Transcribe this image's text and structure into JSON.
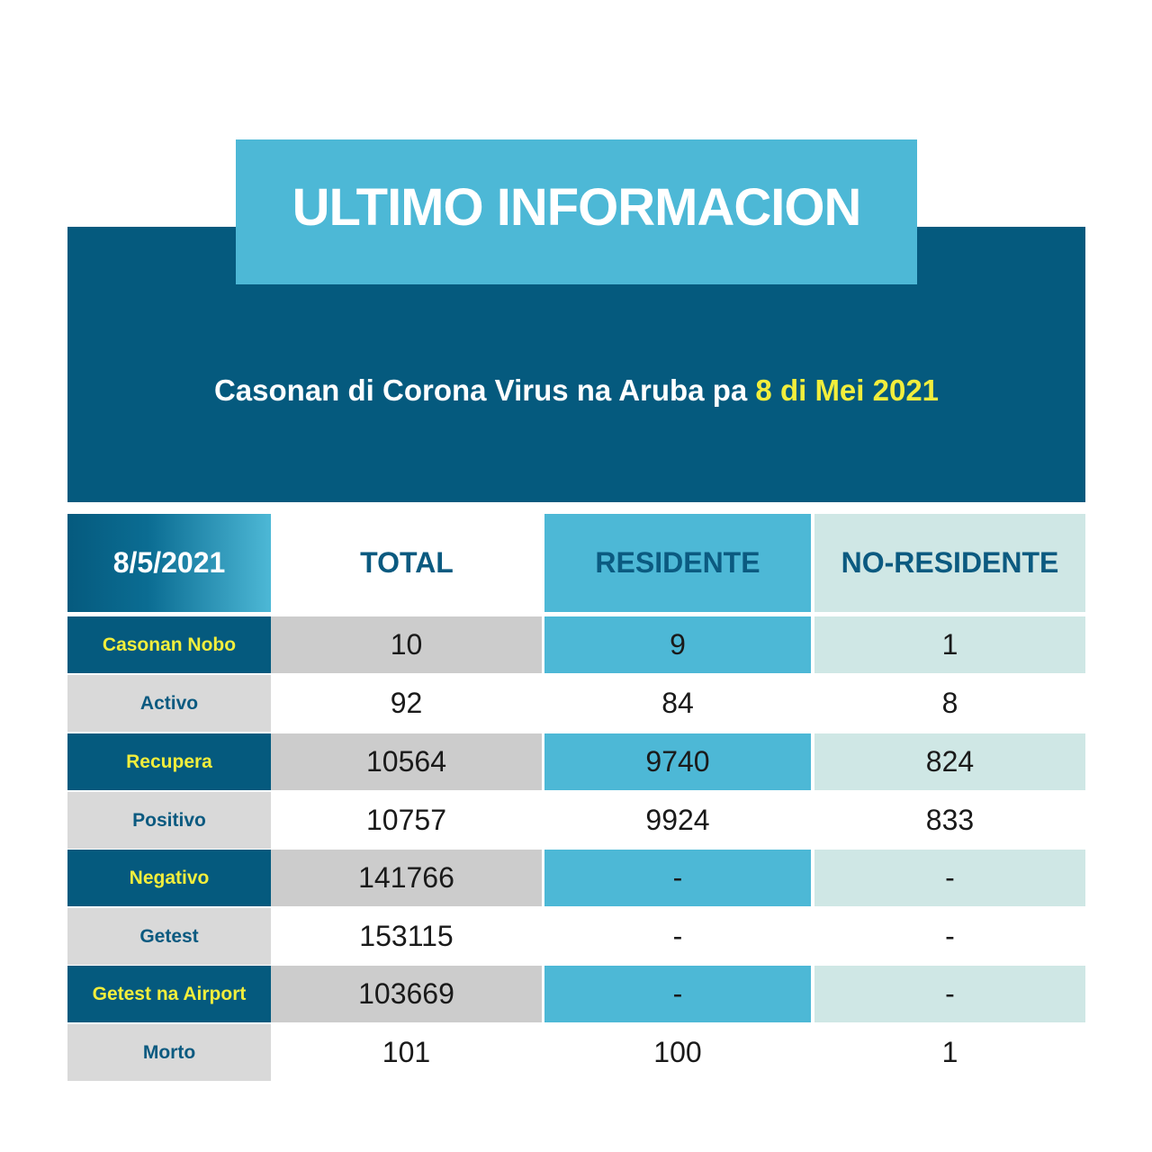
{
  "header": {
    "title": "ULTIMO INFORMACION",
    "subtitle_prefix": "Casonan di Corona Virus na Aruba pa ",
    "subtitle_date": "8 di Mei 2021"
  },
  "table": {
    "columns": [
      "8/5/2021",
      "TOTAL",
      "RESIDENTE",
      "NO-RESIDENTE"
    ],
    "rows": [
      {
        "label": "Casonan Nobo",
        "total": "10",
        "residente": "9",
        "no_residente": "1"
      },
      {
        "label": "Activo",
        "total": "92",
        "residente": "84",
        "no_residente": "8"
      },
      {
        "label": "Recupera",
        "total": "10564",
        "residente": "9740",
        "no_residente": "824"
      },
      {
        "label": "Positivo",
        "total": "10757",
        "residente": "9924",
        "no_residente": "833"
      },
      {
        "label": "Negativo",
        "total": "141766",
        "residente": "-",
        "no_residente": "-"
      },
      {
        "label": "Getest",
        "total": "153115",
        "residente": "-",
        "no_residente": "-"
      },
      {
        "label": "Getest na Airport",
        "total": "103669",
        "residente": "-",
        "no_residente": "-"
      },
      {
        "label": "Morto",
        "total": "101",
        "residente": "100",
        "no_residente": "1"
      }
    ]
  },
  "colors": {
    "dark_blue": "#055a7e",
    "light_blue": "#4db8d6",
    "pale_teal": "#cfe7e5",
    "highlight_yellow": "#f2ee3c"
  }
}
